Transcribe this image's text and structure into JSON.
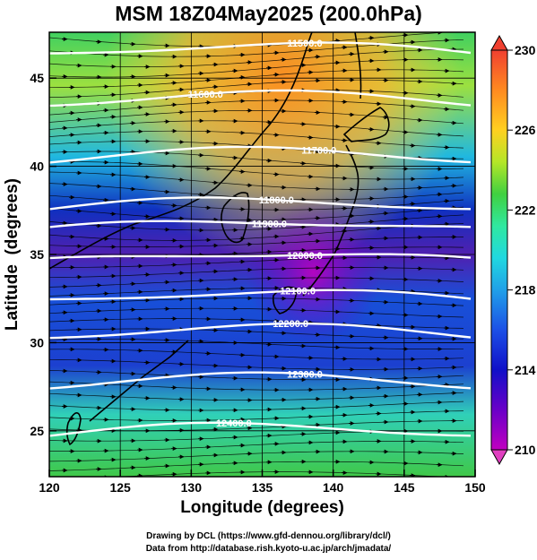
{
  "title": "MSM 18Z04May2025 (200.0hPa)",
  "xlabel": "Longitude (degrees)",
  "ylabel": "Latitude  (degrees)",
  "credits": [
    "Drawing by DCL (https://www.gfd-dennou.org/library/dcl/)",
    "Data from http://database.rish.kyoto-u.ac.jp/arch/jmadata/"
  ],
  "axes": {
    "lon_range": [
      120,
      150
    ],
    "lat_range": [
      22.4,
      47.6
    ],
    "lon_ticks": [
      120,
      125,
      130,
      135,
      140,
      145,
      150
    ],
    "lat_ticks": [
      25,
      30,
      35,
      40,
      45
    ]
  },
  "colorbar": {
    "variable": "temperature",
    "min": 210,
    "max": 230,
    "tick_labels": [
      "230",
      "226",
      "222",
      "218",
      "214",
      "210"
    ],
    "colors": [
      "#c000c0",
      "#6000c8",
      "#1010c8",
      "#1c50e6",
      "#20c8e8",
      "#2ce8a0",
      "#40d040",
      "#b4e628",
      "#ffd020",
      "#f6a030",
      "#ff7a20",
      "#f04030"
    ]
  },
  "contours": [
    {
      "label": "11500.0",
      "lat": 46.4,
      "label_lon": 138.0
    },
    {
      "label": "11600.0",
      "lat": 43.6,
      "label_lon": 131.0
    },
    {
      "label": "11700.0",
      "lat": 40.4,
      "label_lon": 139.0
    },
    {
      "label": "11800.0",
      "lat": 37.6,
      "label_lon": 136.0
    },
    {
      "label": "11900.0",
      "lat": 36.4,
      "label_lon": 135.5
    },
    {
      "label": "12000.0",
      "lat": 34.6,
      "label_lon": 138.0
    },
    {
      "label": "12100.0",
      "lat": 32.4,
      "label_lon": 137.5
    },
    {
      "label": "12200.0",
      "lat": 30.4,
      "label_lon": 137.0
    },
    {
      "label": "12300.0",
      "lat": 27.6,
      "label_lon": 138.0
    },
    {
      "label": "12400.0",
      "lat": 24.8,
      "label_lon": 133.0
    }
  ]
}
